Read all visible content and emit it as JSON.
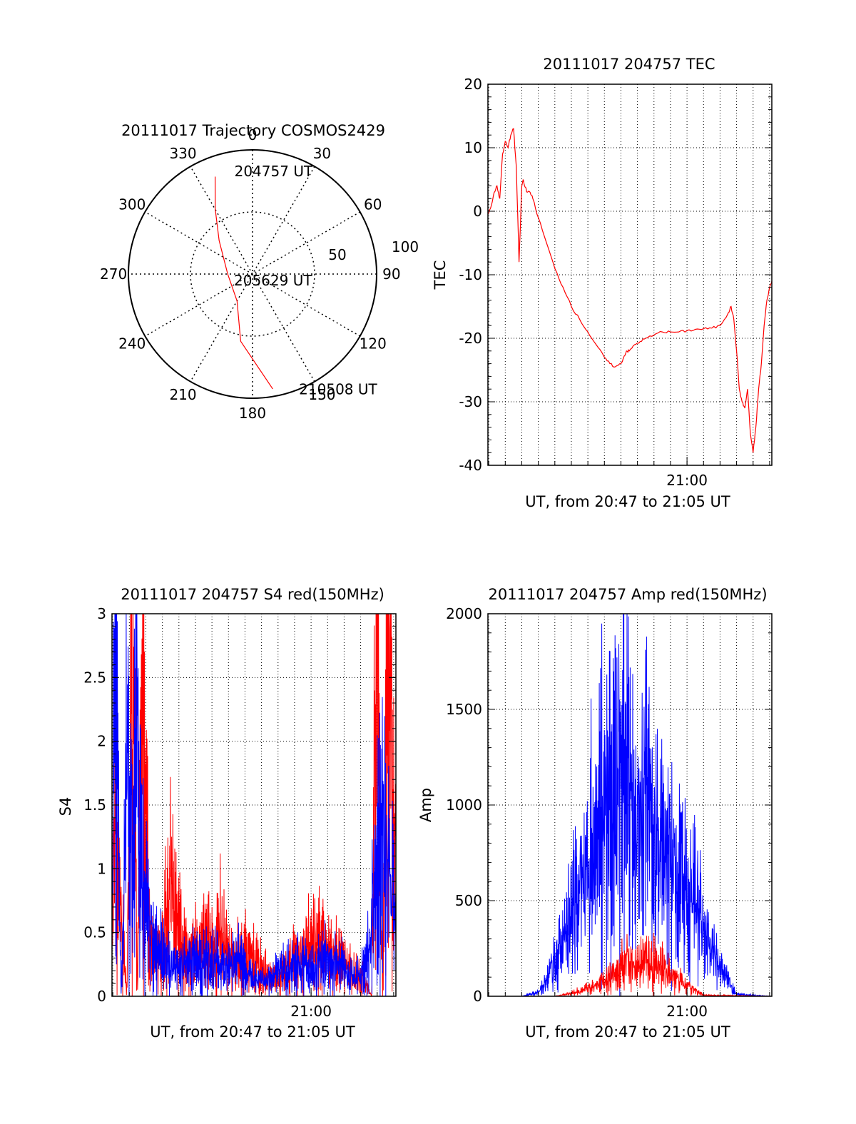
{
  "chart_data": [
    {
      "id": "trajectory",
      "type": "polar",
      "title": "20111017 Trajectory COSMOS2429",
      "azimuth_labels": [
        "0",
        "30",
        "60",
        "90",
        "120",
        "150",
        "180",
        "210",
        "240",
        "270",
        "300",
        "330"
      ],
      "radial_labels": [
        "50",
        "100"
      ],
      "rlim": [
        0,
        100
      ],
      "grid": true,
      "series": [
        {
          "color": "#ff0000",
          "points": [
            {
              "az": 339,
              "r": 84
            },
            {
              "az": 330,
              "r": 60
            },
            {
              "az": 315,
              "r": 38
            },
            {
              "az": 270,
              "r": 20
            },
            {
              "az": 210,
              "r": 25
            },
            {
              "az": 190,
              "r": 55
            },
            {
              "az": 170,
              "r": 94
            }
          ]
        }
      ],
      "annotations": [
        {
          "text": "204757 UT",
          "az": 350,
          "r": 84
        },
        {
          "text": "205629 UT",
          "az": 175,
          "r": 8
        },
        {
          "text": "210508 UT",
          "az": 158,
          "r": 100
        }
      ]
    },
    {
      "id": "tec",
      "type": "line",
      "title": "20111017 204757 TEC",
      "xlabel": "UT, from 20:47 to 21:05 UT",
      "ylabel": "TEC",
      "xlim": [
        "20:47:57",
        "21:05:08"
      ],
      "ylim": [
        -40,
        20
      ],
      "ytick_labels": [
        "20",
        "10",
        "0",
        "-10",
        "-20",
        "-30",
        "-40"
      ],
      "xtick_labels": [
        {
          "t": "21:00:00",
          "label": "21:00"
        }
      ],
      "grid": true,
      "series": [
        {
          "color": "#ff0000",
          "x": [
            "20:47:57",
            "20:48:10",
            "20:48:20",
            "20:48:30",
            "20:48:40",
            "20:48:50",
            "20:49:00",
            "20:49:10",
            "20:49:20",
            "20:49:30",
            "20:49:40",
            "20:49:50",
            "20:50:00",
            "20:50:05",
            "20:50:10",
            "20:50:20",
            "20:50:30",
            "20:50:40",
            "20:51:00",
            "20:51:30",
            "20:52:00",
            "20:52:30",
            "20:53:00",
            "20:53:30",
            "20:54:00",
            "20:54:30",
            "20:55:00",
            "20:55:20",
            "20:55:40",
            "20:56:00",
            "20:56:10",
            "20:56:20",
            "20:56:30",
            "20:56:50",
            "20:57:10",
            "20:57:30",
            "20:58:00",
            "20:58:30",
            "20:59:00",
            "20:59:30",
            "21:00:00",
            "21:00:30",
            "21:01:00",
            "21:01:30",
            "21:02:00",
            "21:02:30",
            "21:02:40",
            "21:02:50",
            "21:03:00",
            "21:03:10",
            "21:03:20",
            "21:03:30",
            "21:03:40",
            "21:03:50",
            "21:04:00",
            "21:04:10",
            "21:04:20",
            "21:04:30",
            "21:04:40",
            "21:04:50",
            "21:05:00",
            "21:05:08"
          ],
          "y": [
            -0.5,
            1,
            3,
            4,
            2,
            9,
            11,
            10,
            12,
            13,
            7,
            -8,
            4,
            5,
            4,
            3,
            3,
            2,
            -1,
            -5,
            -9,
            -12,
            -15,
            -17,
            -19,
            -21,
            -23,
            -24,
            -24.5,
            -24,
            -23,
            -22,
            -22,
            -21,
            -20.5,
            -20,
            -19.5,
            -19,
            -19,
            -19,
            -18.8,
            -18.6,
            -18.5,
            -18.4,
            -18,
            -16,
            -15,
            -17,
            -22,
            -28,
            -30,
            -31,
            -28,
            -35,
            -38,
            -34,
            -28,
            -24,
            -18,
            -14,
            -12,
            -11
          ]
        }
      ]
    },
    {
      "id": "s4",
      "type": "line",
      "title": "20111017 204757 S4 red(150MHz)",
      "xlabel": "UT, from 20:47 to 21:05 UT",
      "ylabel": "S4",
      "xlim": [
        "20:47:57",
        "21:05:08"
      ],
      "ylim": [
        0,
        3
      ],
      "ytick_labels": [
        "3",
        "2.5",
        "2",
        "1.5",
        "1",
        "0.5",
        "0"
      ],
      "xtick_labels": [
        {
          "t": "21:00:00",
          "label": "21:00"
        }
      ],
      "grid": true,
      "series": [
        {
          "color": "#ff0000",
          "x": [
            "20:47:57",
            "20:48:10",
            "20:48:30",
            "20:48:50",
            "20:49:10",
            "20:49:30",
            "20:49:50",
            "20:50:10",
            "20:50:30",
            "20:51:00",
            "20:51:30",
            "20:52:00",
            "20:52:30",
            "20:53:00",
            "20:53:30",
            "20:54:00",
            "20:54:30",
            "20:55:00",
            "20:55:30",
            "20:56:00",
            "20:56:30",
            "20:57:00",
            "20:57:30",
            "20:58:00",
            "20:58:30",
            "20:59:00",
            "20:59:30",
            "21:00:00",
            "21:00:30",
            "21:01:00",
            "21:01:30",
            "21:02:00",
            "21:02:30",
            "21:03:00",
            "21:03:20",
            "21:03:40",
            "21:04:00",
            "21:04:20",
            "21:04:40",
            "21:05:08"
          ],
          "y": [
            0.8,
            1.2,
            0.6,
            0.0,
            3.0,
            0.0,
            3.0,
            0.5,
            0.35,
            0.4,
            0.8,
            0.5,
            0.3,
            0.35,
            0.45,
            0.35,
            0.5,
            0.3,
            0.3,
            0.35,
            0.3,
            0.2,
            0.15,
            0.15,
            0.2,
            0.3,
            0.35,
            0.4,
            0.5,
            0.35,
            0.3,
            0.25,
            0.2,
            0.15,
            0.1,
            0.0,
            3.0,
            0.0,
            3.0,
            1.0
          ]
        },
        {
          "color": "#0000ff",
          "x": [
            "20:47:57",
            "20:48:10",
            "20:48:30",
            "20:48:50",
            "20:49:10",
            "20:49:30",
            "20:49:50",
            "20:50:10",
            "20:50:30",
            "20:51:00",
            "20:51:30",
            "20:52:00",
            "20:52:30",
            "20:53:00",
            "20:53:30",
            "20:54:00",
            "20:54:30",
            "20:55:00",
            "20:55:30",
            "20:56:00",
            "20:56:30",
            "20:57:00",
            "20:57:30",
            "20:58:00",
            "20:58:30",
            "20:59:00",
            "20:59:30",
            "21:00:00",
            "21:00:30",
            "21:01:00",
            "21:01:30",
            "21:02:00",
            "21:02:30",
            "21:03:00",
            "21:03:20",
            "21:03:40",
            "21:04:00",
            "21:04:20",
            "21:04:40",
            "21:05:08"
          ],
          "y": [
            0.6,
            3.0,
            0.0,
            1.6,
            1.2,
            2.0,
            0.8,
            0.55,
            0.4,
            0.3,
            0.25,
            0.25,
            0.22,
            0.28,
            0.25,
            0.3,
            0.25,
            0.25,
            0.3,
            0.2,
            0.15,
            0.12,
            0.15,
            0.2,
            0.22,
            0.25,
            0.25,
            0.2,
            0.25,
            0.3,
            0.25,
            0.2,
            0.15,
            0.15,
            0.25,
            0.6,
            1.0,
            1.3,
            1.0,
            0.8
          ]
        }
      ]
    },
    {
      "id": "amp",
      "type": "line",
      "title": "20111017 204757 Amp red(150MHz)",
      "xlabel": "UT, from 20:47 to 21:05 UT",
      "ylabel": "Amp",
      "xlim": [
        "20:47:57",
        "21:05:08"
      ],
      "ylim": [
        0,
        2000
      ],
      "ytick_labels": [
        "2000",
        "1500",
        "1000",
        "500",
        "0"
      ],
      "xtick_labels": [
        {
          "t": "21:00:00",
          "label": "21:00"
        }
      ],
      "grid": true,
      "series": [
        {
          "color": "#0000ff",
          "x": [
            "20:47:57",
            "20:50:00",
            "20:51:00",
            "20:51:30",
            "20:52:00",
            "20:52:30",
            "20:53:00",
            "20:53:30",
            "20:54:00",
            "20:54:30",
            "20:55:00",
            "20:55:30",
            "20:56:00",
            "20:56:20",
            "20:56:40",
            "20:57:00",
            "20:57:20",
            "20:57:40",
            "20:58:00",
            "20:58:20",
            "20:58:40",
            "20:59:00",
            "20:59:30",
            "21:00:00",
            "21:00:30",
            "21:01:00",
            "21:01:30",
            "21:02:00",
            "21:02:30",
            "21:03:00",
            "21:05:08"
          ],
          "y": [
            0,
            0,
            20,
            80,
            200,
            300,
            420,
            550,
            700,
            900,
            1050,
            1000,
            1150,
            1330,
            1100,
            900,
            1050,
            950,
            800,
            650,
            850,
            600,
            700,
            500,
            550,
            350,
            250,
            150,
            80,
            10,
            0
          ]
        },
        {
          "color": "#ff0000",
          "x": [
            "20:47:57",
            "20:52:00",
            "20:53:00",
            "20:54:00",
            "20:55:00",
            "20:55:30",
            "20:56:00",
            "20:56:30",
            "20:57:00",
            "20:57:30",
            "20:58:00",
            "20:58:30",
            "20:59:00",
            "20:59:30",
            "21:00:00",
            "21:00:30",
            "21:01:00",
            "21:05:08"
          ],
          "y": [
            0,
            0,
            15,
            40,
            80,
            120,
            160,
            180,
            150,
            200,
            170,
            150,
            110,
            90,
            60,
            30,
            5,
            0
          ]
        }
      ]
    }
  ]
}
